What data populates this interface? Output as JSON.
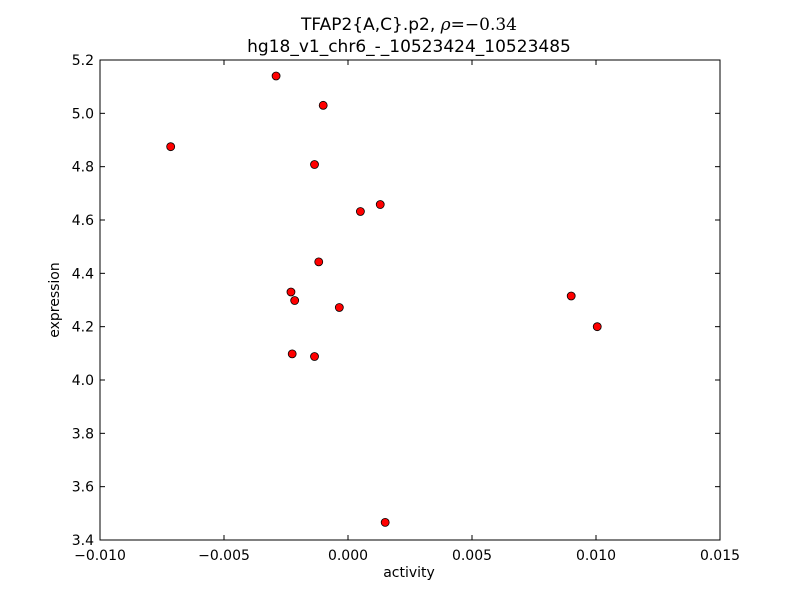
{
  "chart_data": {
    "type": "scatter",
    "title": {
      "line1_prefix": "TFAP2{A,C}.p2, ",
      "rho_symbol": "ρ",
      "rho_value": "=−0.34",
      "line2": "hg18_v1_chr6_-_10523424_10523485"
    },
    "xlabel": "activity",
    "ylabel": "expression",
    "xlim": [
      -0.01,
      0.015
    ],
    "ylim": [
      3.4,
      5.2
    ],
    "xticks": [
      -0.01,
      -0.005,
      0.0,
      0.005,
      0.01,
      0.015
    ],
    "xtick_labels": [
      "−0.010",
      "−0.005",
      "0.000",
      "0.005",
      "0.010",
      "0.015"
    ],
    "yticks": [
      3.4,
      3.6,
      3.8,
      4.0,
      4.2,
      4.4,
      4.6,
      4.8,
      5.0,
      5.2
    ],
    "ytick_labels": [
      "3.4",
      "3.6",
      "3.8",
      "4.0",
      "4.2",
      "4.4",
      "4.6",
      "4.8",
      "5.0",
      "5.2"
    ],
    "grid": false,
    "marker_color": "#ff0000",
    "marker_edge_color": "#000000",
    "points": [
      {
        "x": -0.00715,
        "y": 4.875
      },
      {
        "x": -0.0029,
        "y": 5.14
      },
      {
        "x": -0.001,
        "y": 5.03
      },
      {
        "x": -0.00135,
        "y": 4.808
      },
      {
        "x": 0.0005,
        "y": 4.632
      },
      {
        "x": 0.0013,
        "y": 4.658
      },
      {
        "x": -0.00118,
        "y": 4.443
      },
      {
        "x": -0.0023,
        "y": 4.33
      },
      {
        "x": -0.00215,
        "y": 4.298
      },
      {
        "x": -0.00035,
        "y": 4.272
      },
      {
        "x": -0.00225,
        "y": 4.098
      },
      {
        "x": -0.00135,
        "y": 4.088
      },
      {
        "x": 0.009,
        "y": 4.315
      },
      {
        "x": 0.01005,
        "y": 4.2
      },
      {
        "x": 0.0015,
        "y": 3.466
      }
    ]
  }
}
